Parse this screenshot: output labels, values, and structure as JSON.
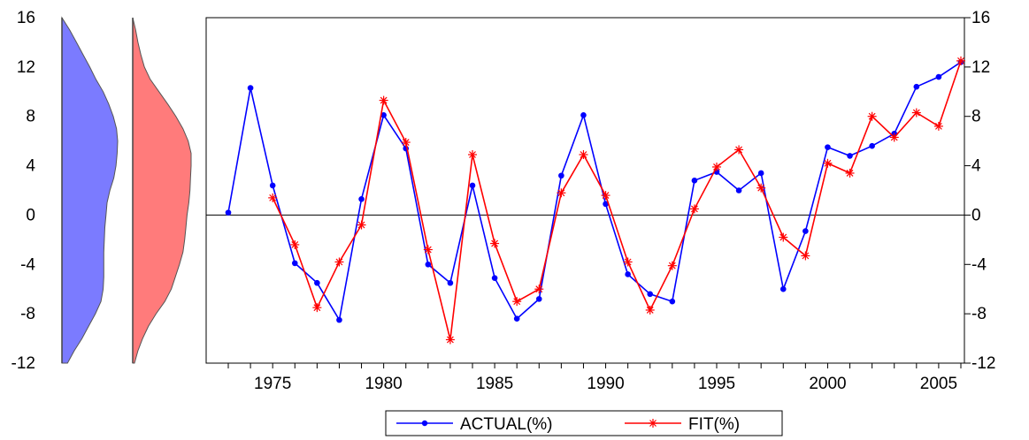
{
  "chart_data": {
    "type": "line",
    "title": "",
    "xlabel": "",
    "ylabel": "",
    "xlim": [
      1972,
      2006
    ],
    "ylim": [
      -12,
      16
    ],
    "yticks": [
      -12,
      -8,
      -4,
      0,
      4,
      8,
      12,
      16
    ],
    "ytick_labels": [
      "-12",
      "-8",
      "-4",
      "0",
      "4",
      "8",
      "12",
      "16"
    ],
    "xticks": [
      1975,
      1980,
      1985,
      1990,
      1995,
      2000,
      2005
    ],
    "xtick_labels": [
      "1975",
      "1980",
      "1985",
      "1990",
      "1995",
      "2000",
      "2005"
    ],
    "zero_line": true,
    "legend_position": "bottom-center",
    "series": [
      {
        "name": "ACTUAL(%)",
        "color": "#0000ff",
        "marker": "dot",
        "x": [
          1973,
          1974,
          1975,
          1976,
          1977,
          1978,
          1979,
          1980,
          1981,
          1982,
          1983,
          1984,
          1985,
          1986,
          1987,
          1988,
          1989,
          1990,
          1991,
          1992,
          1993,
          1994,
          1995,
          1996,
          1997,
          1998,
          1999,
          2000,
          2001,
          2002,
          2003,
          2004,
          2005,
          2006
        ],
        "values": [
          0.2,
          10.3,
          2.4,
          -3.9,
          -5.5,
          -8.5,
          1.3,
          8.1,
          5.4,
          -4.0,
          -5.5,
          2.4,
          -5.1,
          -8.4,
          -6.8,
          3.2,
          8.1,
          0.9,
          -4.8,
          -6.4,
          -7.0,
          2.8,
          3.5,
          2.0,
          3.4,
          -6.0,
          -1.3,
          5.5,
          4.8,
          5.6,
          6.6,
          10.4,
          11.2,
          12.4
        ]
      },
      {
        "name": "FIT(%)",
        "color": "#ff0000",
        "marker": "star",
        "x": [
          1975,
          1976,
          1977,
          1978,
          1979,
          1980,
          1981,
          1982,
          1983,
          1984,
          1985,
          1986,
          1987,
          1988,
          1989,
          1990,
          1991,
          1992,
          1993,
          1994,
          1995,
          1996,
          1997,
          1998,
          1999,
          2000,
          2001,
          2002,
          2003,
          2004,
          2005,
          2006
        ],
        "values": [
          1.4,
          -2.4,
          -7.5,
          -3.8,
          -0.8,
          9.3,
          5.9,
          -2.8,
          -10.1,
          4.9,
          -2.3,
          -7.0,
          -6.0,
          1.8,
          4.9,
          1.6,
          -3.8,
          -7.7,
          -4.1,
          0.5,
          3.9,
          5.3,
          2.2,
          -1.8,
          -3.3,
          4.2,
          3.4,
          8.0,
          6.3,
          8.3,
          7.2,
          12.5
        ]
      }
    ],
    "distributions": [
      {
        "name": "ACTUAL(%)",
        "color": "#7b7bff",
        "orientation": "vertical",
        "profile": [
          [
            16,
            0.0
          ],
          [
            15,
            0.14
          ],
          [
            14,
            0.26
          ],
          [
            13,
            0.38
          ],
          [
            12,
            0.5
          ],
          [
            11,
            0.61
          ],
          [
            10,
            0.74
          ],
          [
            9,
            0.84
          ],
          [
            8,
            0.92
          ],
          [
            7,
            0.98
          ],
          [
            6,
            1.0
          ],
          [
            5,
            0.99
          ],
          [
            4,
            0.97
          ],
          [
            3,
            0.93
          ],
          [
            2,
            0.86
          ],
          [
            1,
            0.81
          ],
          [
            0,
            0.79
          ],
          [
            -1,
            0.77
          ],
          [
            -2,
            0.76
          ],
          [
            -3,
            0.75
          ],
          [
            -4,
            0.75
          ],
          [
            -5,
            0.75
          ],
          [
            -6,
            0.74
          ],
          [
            -7,
            0.7
          ],
          [
            -8,
            0.6
          ],
          [
            -9,
            0.48
          ],
          [
            -10,
            0.36
          ],
          [
            -11,
            0.22
          ],
          [
            -12,
            0.1
          ]
        ]
      },
      {
        "name": "FIT(%)",
        "color": "#ff7b7b",
        "orientation": "vertical",
        "profile": [
          [
            16,
            0.0
          ],
          [
            15,
            0.05
          ],
          [
            14,
            0.09
          ],
          [
            13,
            0.14
          ],
          [
            12,
            0.2
          ],
          [
            11,
            0.3
          ],
          [
            10,
            0.45
          ],
          [
            9,
            0.6
          ],
          [
            8,
            0.74
          ],
          [
            7,
            0.86
          ],
          [
            6,
            0.95
          ],
          [
            5,
            1.0
          ],
          [
            4,
            1.0
          ],
          [
            3,
            0.99
          ],
          [
            2,
            0.98
          ],
          [
            1,
            0.96
          ],
          [
            0,
            0.93
          ],
          [
            -1,
            0.91
          ],
          [
            -2,
            0.89
          ],
          [
            -3,
            0.86
          ],
          [
            -4,
            0.8
          ],
          [
            -5,
            0.73
          ],
          [
            -6,
            0.66
          ],
          [
            -7,
            0.55
          ],
          [
            -8,
            0.4
          ],
          [
            -9,
            0.27
          ],
          [
            -10,
            0.17
          ],
          [
            -11,
            0.09
          ],
          [
            -12,
            0.03
          ]
        ]
      }
    ]
  }
}
